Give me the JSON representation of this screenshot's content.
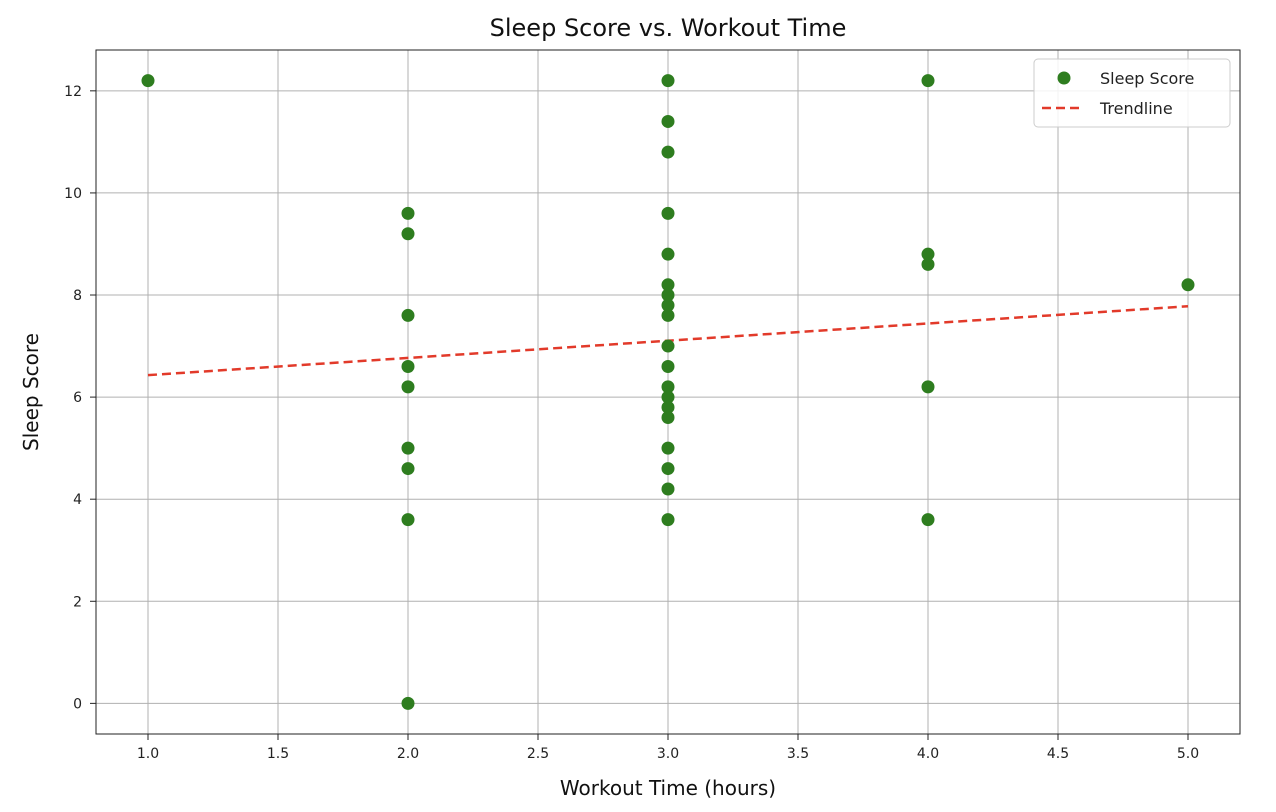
{
  "chart_data": {
    "type": "scatter",
    "title": "Sleep Score vs. Workout Time",
    "xlabel": "Workout Time (hours)",
    "ylabel": "Sleep Score",
    "xlim": [
      0.8,
      5.2
    ],
    "ylim": [
      -0.6,
      12.8
    ],
    "xticks": [
      1.0,
      1.5,
      2.0,
      2.5,
      3.0,
      3.5,
      4.0,
      4.5,
      5.0
    ],
    "xtick_labels": [
      "1.0",
      "1.5",
      "2.0",
      "2.5",
      "3.0",
      "3.5",
      "4.0",
      "4.5",
      "5.0"
    ],
    "yticks": [
      0,
      2,
      4,
      6,
      8,
      10,
      12
    ],
    "ytick_labels": [
      "0",
      "2",
      "4",
      "6",
      "8",
      "10",
      "12"
    ],
    "grid": true,
    "legend_position": "top-right",
    "series": [
      {
        "name": "Sleep Score",
        "kind": "scatter",
        "color": "#2e7d1f",
        "points": [
          [
            1.0,
            12.2
          ],
          [
            2.0,
            9.6
          ],
          [
            2.0,
            9.2
          ],
          [
            2.0,
            7.6
          ],
          [
            2.0,
            6.6
          ],
          [
            2.0,
            6.2
          ],
          [
            2.0,
            5.0
          ],
          [
            2.0,
            4.6
          ],
          [
            2.0,
            3.6
          ],
          [
            2.0,
            0.0
          ],
          [
            3.0,
            12.2
          ],
          [
            3.0,
            11.4
          ],
          [
            3.0,
            10.8
          ],
          [
            3.0,
            9.6
          ],
          [
            3.0,
            8.8
          ],
          [
            3.0,
            8.2
          ],
          [
            3.0,
            8.0
          ],
          [
            3.0,
            7.8
          ],
          [
            3.0,
            7.6
          ],
          [
            3.0,
            7.0
          ],
          [
            3.0,
            6.6
          ],
          [
            3.0,
            6.2
          ],
          [
            3.0,
            6.0
          ],
          [
            3.0,
            5.8
          ],
          [
            3.0,
            5.6
          ],
          [
            3.0,
            5.0
          ],
          [
            3.0,
            4.6
          ],
          [
            3.0,
            4.2
          ],
          [
            3.0,
            3.6
          ],
          [
            4.0,
            12.2
          ],
          [
            4.0,
            8.8
          ],
          [
            4.0,
            8.6
          ],
          [
            4.0,
            6.2
          ],
          [
            4.0,
            3.6
          ],
          [
            5.0,
            8.2
          ]
        ]
      },
      {
        "name": "Trendline",
        "kind": "line",
        "style": "dashed",
        "color": "#e23a2a",
        "points": [
          [
            1.0,
            6.43
          ],
          [
            5.0,
            7.78
          ]
        ]
      }
    ]
  }
}
